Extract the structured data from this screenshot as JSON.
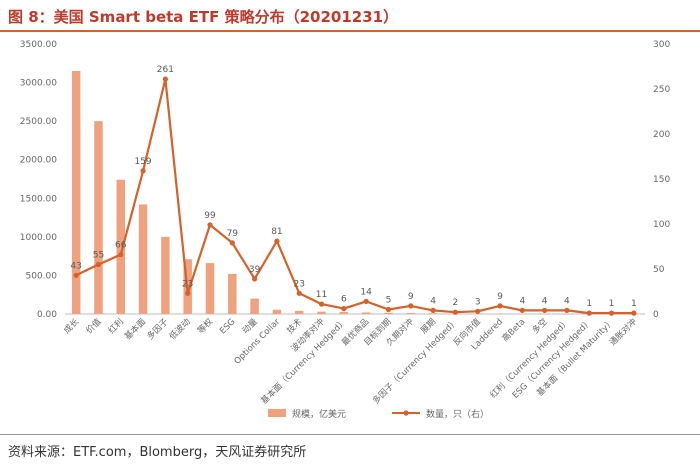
{
  "header": {
    "title": "图 8：美国 Smart beta ETF 策略分布（20201231）"
  },
  "footer": {
    "source": "资料来源：ETF.com，Blomberg，天风证券研究所"
  },
  "colors": {
    "bar": "#f0a27e",
    "line": "#d4622a",
    "axis_text": "#666666",
    "title": "#c0392b"
  },
  "chart_data": {
    "type": "bar+line",
    "categories": [
      "成长",
      "价值",
      "红利",
      "基本面",
      "多因子",
      "低波动",
      "等权",
      "ESG",
      "动量",
      "Options Collar",
      "技术",
      "波动率对冲",
      "基本面（Currency Hedged）",
      "最优商品",
      "目标到期",
      "久期对冲",
      "展期",
      "多因子（Currency Hedged）",
      "反向市值",
      "Laddered",
      "高Beta",
      "多空",
      "红利（Currency Hedged）",
      "ESG（Currency Hedged）",
      "基本面（Bullet Maturity）",
      "通胀对冲"
    ],
    "series": [
      {
        "name": "规模，亿美元",
        "type": "bar",
        "axis": "left",
        "values": [
          3150,
          2500,
          1740,
          1420,
          1000,
          710,
          660,
          520,
          200,
          55,
          40,
          30,
          25,
          20,
          15,
          12,
          10,
          8,
          6,
          5,
          4,
          3,
          2,
          2,
          1,
          1
        ]
      },
      {
        "name": "数量，只（右）",
        "type": "line",
        "axis": "right",
        "values": [
          43,
          55,
          66,
          159,
          261,
          23,
          99,
          79,
          39,
          81,
          23,
          11,
          6,
          14,
          5,
          9,
          4,
          2,
          3,
          9,
          4,
          4,
          4,
          1,
          1,
          1
        ]
      }
    ],
    "left_axis": {
      "ylim": [
        0,
        3500
      ],
      "ticks": [
        "0.00",
        "500.00",
        "1000.00",
        "1500.00",
        "2000.00",
        "2500.00",
        "3000.00",
        "3500.00"
      ]
    },
    "right_axis": {
      "ylim": [
        0,
        300
      ],
      "ticks": [
        "0",
        "50",
        "100",
        "150",
        "200",
        "250",
        "300"
      ]
    },
    "grid": false,
    "legend_position": "bottom-center"
  }
}
